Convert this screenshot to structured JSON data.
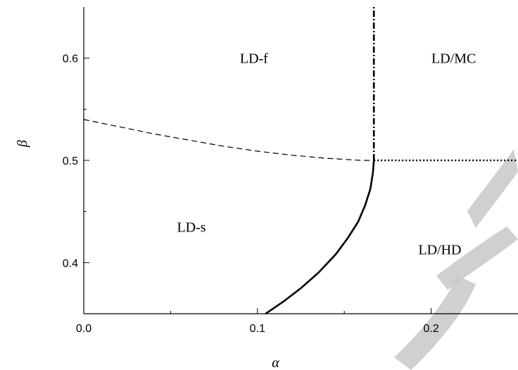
{
  "chart_data": {
    "type": "line",
    "title": "",
    "xlabel": "α",
    "ylabel": "β",
    "xlim": [
      0.0,
      0.25
    ],
    "ylim": [
      0.35,
      0.65
    ],
    "grid": false,
    "x_ticks": [
      {
        "value": 0.0,
        "label": "0.0"
      },
      {
        "value": 0.1,
        "label": "0.1"
      },
      {
        "value": 0.2,
        "label": "0.2"
      }
    ],
    "x_minor_ticks": [
      0.05,
      0.15
    ],
    "y_ticks": [
      {
        "value": 0.4,
        "label": "0.4"
      },
      {
        "value": 0.5,
        "label": "0.5"
      },
      {
        "value": 0.6,
        "label": "0.6"
      }
    ],
    "y_minor_ticks": [
      0.45,
      0.55
    ],
    "series": [
      {
        "style": "solid",
        "stroke": "#000000",
        "x": [
          0.1047,
          0.115,
          0.125,
          0.135,
          0.145,
          0.152,
          0.158,
          0.162,
          0.165,
          0.1665,
          0.167
        ],
        "y": [
          0.35,
          0.362,
          0.375,
          0.39,
          0.408,
          0.424,
          0.44,
          0.456,
          0.472,
          0.488,
          0.5
        ]
      },
      {
        "style": "dashed",
        "stroke": "#000000",
        "x": [
          0.0,
          0.02,
          0.04,
          0.06,
          0.08,
          0.1,
          0.12,
          0.14,
          0.16,
          0.167
        ],
        "y": [
          0.54,
          0.533,
          0.526,
          0.52,
          0.514,
          0.509,
          0.505,
          0.502,
          0.5,
          0.5
        ]
      },
      {
        "style": "dashdot",
        "stroke": "#000000",
        "x": [
          0.167,
          0.167
        ],
        "y": [
          0.5,
          0.65
        ]
      },
      {
        "style": "dotted",
        "stroke": "#000000",
        "x": [
          0.167,
          0.25
        ],
        "y": [
          0.5,
          0.5
        ]
      }
    ],
    "annotations": [
      {
        "text": "LD-f",
        "x": 0.098,
        "y": 0.6
      },
      {
        "text": "LD/MC",
        "x": 0.213,
        "y": 0.6
      },
      {
        "text": "LD-s",
        "x": 0.062,
        "y": 0.435
      },
      {
        "text": "LD/HD",
        "x": 0.205,
        "y": 0.413
      }
    ]
  }
}
